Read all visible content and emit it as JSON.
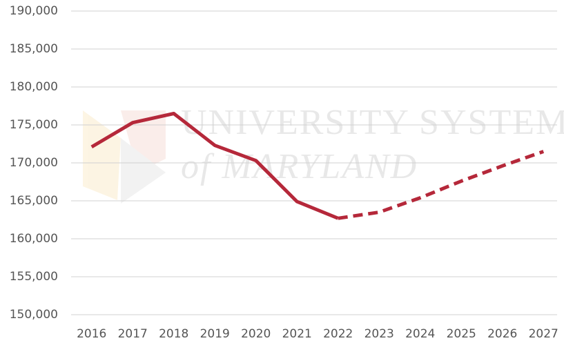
{
  "chart_data": {
    "type": "line",
    "watermark": [
      "UNIVERSITY SYSTEM",
      "of MARYLAND"
    ],
    "categories": [
      "2016",
      "2017",
      "2018",
      "2019",
      "2020",
      "2021",
      "2022",
      "2023",
      "2024",
      "2025",
      "2026",
      "2027"
    ],
    "series": [
      {
        "color": "#b5283a",
        "dashed": false,
        "values": [
          172100,
          175300,
          176500,
          172300,
          170300,
          164900,
          162700,
          null,
          null,
          null,
          null,
          null
        ]
      },
      {
        "color": "#b5283a",
        "dashed": true,
        "values": [
          null,
          null,
          null,
          null,
          null,
          null,
          162700,
          163500,
          165400,
          167600,
          169600,
          171500
        ]
      }
    ],
    "ylim": [
      150000,
      190000
    ],
    "yticks": [
      {
        "value": 150000,
        "label": "150,000"
      },
      {
        "value": 155000,
        "label": "155,000"
      },
      {
        "value": 160000,
        "label": "160,000"
      },
      {
        "value": 165000,
        "label": "165,000"
      },
      {
        "value": 170000,
        "label": "170,000"
      },
      {
        "value": 175000,
        "label": "175,000"
      },
      {
        "value": 180000,
        "label": "180,000"
      },
      {
        "value": 185000,
        "label": "185,000"
      },
      {
        "value": 190000,
        "label": "190,000"
      }
    ],
    "grid": true
  }
}
